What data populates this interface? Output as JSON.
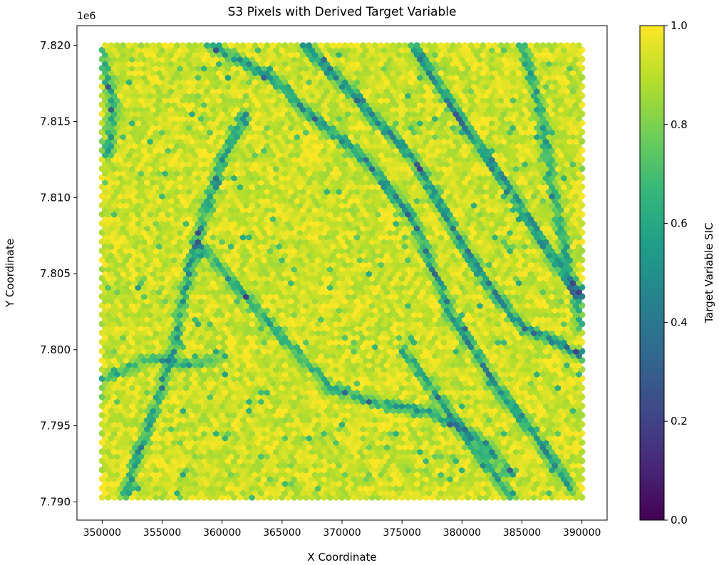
{
  "chart_data": {
    "type": "scatter",
    "title": "S3 Pixels with Derived Target Variable",
    "xlabel": "X Coordinate",
    "ylabel": "Y Coordinate",
    "y_offset_label": "1e6",
    "colorbar_label": "Target Variable SIC",
    "colormap": "viridis",
    "colormap_stops": [
      "#440154",
      "#482878",
      "#3e4989",
      "#31688e",
      "#26828e",
      "#1f9e89",
      "#35b779",
      "#6ece58",
      "#b5de2b",
      "#fde725"
    ],
    "xlim": [
      347900,
      392100
    ],
    "ylim": [
      7788800,
      7821300
    ],
    "x_ticks": [
      350000,
      355000,
      360000,
      365000,
      370000,
      375000,
      380000,
      385000,
      390000
    ],
    "x_tick_labels": [
      "350000",
      "355000",
      "360000",
      "365000",
      "370000",
      "375000",
      "380000",
      "385000",
      "390000"
    ],
    "y_ticks": [
      7790000,
      7795000,
      7800000,
      7805000,
      7810000,
      7815000,
      7820000
    ],
    "y_tick_labels": [
      "7.790",
      "7.795",
      "7.800",
      "7.805",
      "7.810",
      "7.815",
      "7.820"
    ],
    "clim": [
      0.0,
      1.0
    ],
    "colorbar_ticks": [
      0.0,
      0.2,
      0.4,
      0.6,
      0.8,
      1.0
    ],
    "colorbar_tick_labels": [
      "0.0",
      "0.2",
      "0.4",
      "0.6",
      "0.8",
      "1.0"
    ],
    "grid": false,
    "extent": {
      "x": [
        350000,
        390000
      ],
      "y": [
        7790300,
        7820000
      ]
    },
    "sampling": {
      "dx": 500,
      "dy": 300
    },
    "value_range": [
      0.2,
      1.0
    ],
    "lead_features": [
      {
        "points": [
          [
            367000,
            7820000
          ],
          [
            376000,
            7812500
          ],
          [
            381500,
            7805000
          ],
          [
            385000,
            7801500
          ],
          [
            388000,
            7800500
          ],
          [
            390000,
            7799500
          ]
        ],
        "depth": 0.55
      },
      {
        "points": [
          [
            376000,
            7820000
          ],
          [
            380000,
            7815000
          ],
          [
            384000,
            7810500
          ],
          [
            388000,
            7805500
          ],
          [
            390000,
            7803500
          ]
        ],
        "depth": 0.55
      },
      {
        "points": [
          [
            359000,
            7820000
          ],
          [
            364000,
            7818000
          ],
          [
            368000,
            7815000
          ],
          [
            372000,
            7812500
          ],
          [
            376000,
            7808500
          ],
          [
            379000,
            7802500
          ],
          [
            383000,
            7797500
          ],
          [
            386500,
            7794000
          ],
          [
            389000,
            7791000
          ]
        ],
        "depth": 0.5
      },
      {
        "points": [
          [
            362000,
            7815500
          ],
          [
            360000,
            7812500
          ],
          [
            359000,
            7810000
          ],
          [
            357500,
            7806000
          ],
          [
            356000,
            7800500
          ],
          [
            355000,
            7797500
          ],
          [
            353000,
            7793000
          ],
          [
            352000,
            7790500
          ]
        ],
        "depth": 0.45
      },
      {
        "points": [
          [
            358000,
            7807000
          ],
          [
            362000,
            7803500
          ],
          [
            366000,
            7800000
          ],
          [
            369000,
            7797500
          ],
          [
            373000,
            7796500
          ],
          [
            377000,
            7796000
          ],
          [
            381000,
            7794500
          ],
          [
            384000,
            7792000
          ]
        ],
        "depth": 0.4
      },
      {
        "points": [
          [
            385000,
            7820000
          ],
          [
            386500,
            7816000
          ],
          [
            387500,
            7811000
          ],
          [
            388500,
            7807000
          ],
          [
            389500,
            7803000
          ],
          [
            390000,
            7801500
          ]
        ],
        "depth": 0.4
      },
      {
        "points": [
          [
            350000,
            7819500
          ],
          [
            351000,
            7816000
          ],
          [
            350500,
            7813000
          ]
        ],
        "depth": 0.4
      },
      {
        "points": [
          [
            350000,
            7798000
          ],
          [
            354000,
            7799500
          ],
          [
            357000,
            7799000
          ],
          [
            360000,
            7799500
          ]
        ],
        "depth": 0.3
      },
      {
        "points": [
          [
            375000,
            7800000
          ],
          [
            378000,
            7797000
          ],
          [
            381000,
            7793500
          ],
          [
            384000,
            7790500
          ]
        ],
        "depth": 0.4
      }
    ]
  }
}
